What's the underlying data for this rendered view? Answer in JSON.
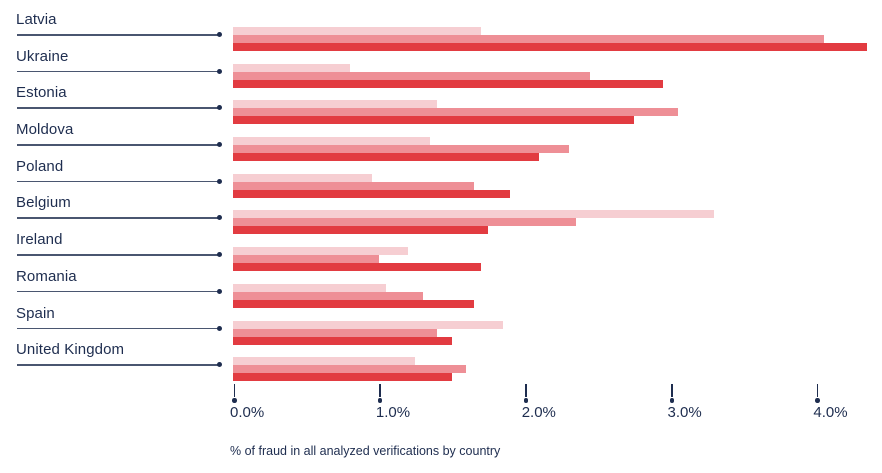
{
  "chart_data": {
    "type": "bar",
    "orientation": "horizontal",
    "caption": "% of fraud in all analyzed verifications by country",
    "xlabel": "",
    "ylabel": "",
    "xlim": [
      0,
      4.45
    ],
    "grid": false,
    "legend": "none",
    "x_ticks": [
      "0.0%",
      "1.0%",
      "2.0%",
      "3.0%",
      "4.0%"
    ],
    "x_tick_values": [
      0,
      1,
      2,
      3,
      4
    ],
    "categories": [
      "Latvia",
      "Ukraine",
      "Estonia",
      "Moldova",
      "Poland",
      "Belgium",
      "Ireland",
      "Romania",
      "Spain",
      "United Kingdom"
    ],
    "series": [
      {
        "name": "series-light-pink",
        "color": "#f6ced2",
        "values": [
          1.7,
          0.8,
          1.4,
          1.35,
          0.95,
          3.3,
          1.2,
          1.05,
          1.85,
          1.25
        ]
      },
      {
        "name": "series-medium-pink",
        "color": "#ee8f96",
        "values": [
          4.05,
          2.45,
          3.05,
          2.3,
          1.65,
          2.35,
          1.0,
          1.3,
          1.4,
          1.6
        ]
      },
      {
        "name": "series-dark-red",
        "color": "#e23b41",
        "values": [
          4.35,
          2.95,
          2.75,
          2.1,
          1.9,
          1.75,
          1.7,
          1.65,
          1.5,
          1.5
        ]
      }
    ],
    "colors": {
      "label_text": "#1e2d4f",
      "leader_line": "#4a5670",
      "axis_text": "#1e2d4f",
      "background": "#ffffff"
    }
  }
}
